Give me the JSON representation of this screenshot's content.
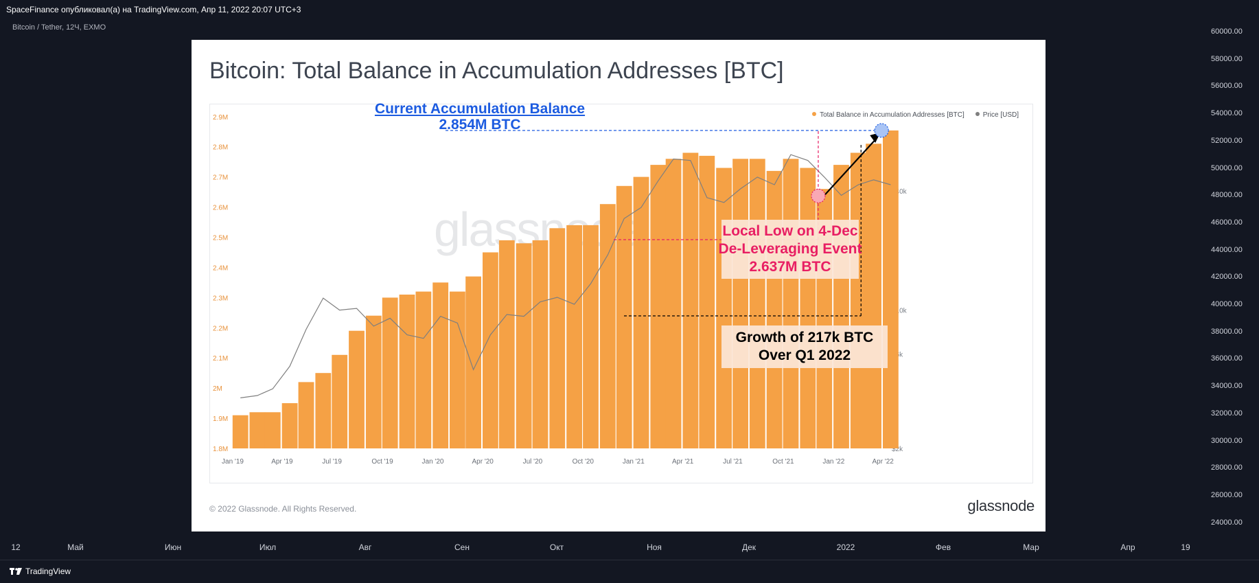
{
  "header": {
    "publisher_line": "SpaceFinance опубликовал(а) на TradingView.com, Апр 11, 2022 20:07 UTC+3"
  },
  "symbol_label": "Bitcoin / Tether, 12Ч, EXMO",
  "price_scale": [
    "60000.00",
    "58000.00",
    "56000.00",
    "54000.00",
    "52000.00",
    "50000.00",
    "48000.00",
    "46000.00",
    "44000.00",
    "42000.00",
    "40000.00",
    "38000.00",
    "36000.00",
    "34000.00",
    "32000.00",
    "30000.00",
    "28000.00",
    "26000.00",
    "24000.00"
  ],
  "time_scale": [
    "12",
    "Май",
    "Июн",
    "Июл",
    "Авг",
    "Сен",
    "Окт",
    "Ноя",
    "Дек",
    "2022",
    "Фев",
    "Мар",
    "Апр",
    "19"
  ],
  "footer": {
    "brand": "TradingView"
  },
  "card": {
    "title": "Bitcoin: Total Balance in Accumulation Addresses [BTC]",
    "copyright": "© 2022 Glassnode. All Rights Reserved.",
    "brand": "glassnode",
    "watermark": "glassnode",
    "legend": {
      "series1": "Total Balance in Accumulation Addresses [BTC]",
      "series2": "Price [USD]"
    }
  },
  "colors": {
    "bars": "#f5a145",
    "price": "#7f7f7f",
    "blue": "#1c5be0",
    "pink": "#e81e63",
    "black": "#000000"
  },
  "annotations": {
    "current_title": "Current Accumulation Balance",
    "current_value": "2.854M BTC",
    "low_line1": "Local Low on 4-Dec",
    "low_line2": "De-Leveraging Event",
    "low_line3": "2.637M BTC",
    "growth_line1": "Growth of 217k BTC",
    "growth_line2": "Over Q1 2022"
  },
  "chart_data": {
    "type": "bar",
    "title": "Bitcoin: Total Balance in Accumulation Addresses [BTC]",
    "y_left": {
      "ticks": [
        "1.8M",
        "1.9M",
        "2M",
        "2.1M",
        "2.2M",
        "2.3M",
        "2.4M",
        "2.5M",
        "2.6M",
        "2.7M",
        "2.8M",
        "2.9M"
      ],
      "ylim": [
        1.8,
        2.92
      ],
      "unit": "M BTC"
    },
    "y_right": {
      "ticks": [
        "$2k",
        "$6k",
        "$10k",
        "$40k"
      ],
      "scale": "log"
    },
    "x_ticks": [
      "Jan '19",
      "Apr '19",
      "Jul '19",
      "Oct '19",
      "Jan '20",
      "Apr '20",
      "Jul '20",
      "Oct '20",
      "Jan '21",
      "Apr '21",
      "Jul '21",
      "Oct '21",
      "Jan '22",
      "Apr '22"
    ],
    "x_range": [
      "2019-01-01",
      "2022-04-07"
    ],
    "series": [
      {
        "name": "Total Balance in Accumulation Addresses [BTC]",
        "type": "bar",
        "x": [
          "2019-01",
          "2019-02",
          "2019-03",
          "2019-04",
          "2019-05",
          "2019-06",
          "2019-07",
          "2019-08",
          "2019-09",
          "2019-10",
          "2019-11",
          "2019-12",
          "2020-01",
          "2020-02",
          "2020-03",
          "2020-04",
          "2020-05",
          "2020-06",
          "2020-07",
          "2020-08",
          "2020-09",
          "2020-10",
          "2020-11",
          "2020-12",
          "2021-01",
          "2021-02",
          "2021-03",
          "2021-04",
          "2021-05",
          "2021-06",
          "2021-07",
          "2021-08",
          "2021-09",
          "2021-10",
          "2021-11",
          "2021-12",
          "2022-01",
          "2022-02",
          "2022-03",
          "2022-04"
        ],
        "values": [
          1.91,
          1.92,
          1.92,
          1.95,
          2.02,
          2.05,
          2.11,
          2.19,
          2.24,
          2.3,
          2.31,
          2.32,
          2.35,
          2.32,
          2.37,
          2.45,
          2.49,
          2.48,
          2.49,
          2.53,
          2.54,
          2.54,
          2.61,
          2.67,
          2.7,
          2.74,
          2.76,
          2.78,
          2.77,
          2.73,
          2.76,
          2.76,
          2.72,
          2.76,
          2.73,
          2.66,
          2.74,
          2.78,
          2.81,
          2.854
        ]
      },
      {
        "name": "Price [USD]",
        "type": "line",
        "x": [
          "2019-01",
          "2019-02",
          "2019-03",
          "2019-04",
          "2019-05",
          "2019-06",
          "2019-07",
          "2019-08",
          "2019-09",
          "2019-10",
          "2019-11",
          "2019-12",
          "2020-01",
          "2020-02",
          "2020-03",
          "2020-04",
          "2020-05",
          "2020-06",
          "2020-07",
          "2020-08",
          "2020-09",
          "2020-10",
          "2020-11",
          "2020-12",
          "2021-01",
          "2021-02",
          "2021-03",
          "2021-04",
          "2021-05",
          "2021-06",
          "2021-07",
          "2021-08",
          "2021-09",
          "2021-10",
          "2021-11",
          "2021-12",
          "2022-01",
          "2022-02",
          "2022-03",
          "2022-04"
        ],
        "values": [
          3600,
          3700,
          4000,
          5200,
          8000,
          11500,
          10000,
          10200,
          8300,
          9100,
          7500,
          7200,
          9300,
          8600,
          5000,
          7500,
          9500,
          9300,
          11000,
          11600,
          10700,
          13600,
          19000,
          29000,
          33000,
          45000,
          58000,
          57000,
          37000,
          35000,
          41000,
          47000,
          43000,
          61000,
          57000,
          47000,
          38000,
          43000,
          45500,
          43000
        ]
      }
    ],
    "legend_position": "top-right",
    "grid": false
  }
}
